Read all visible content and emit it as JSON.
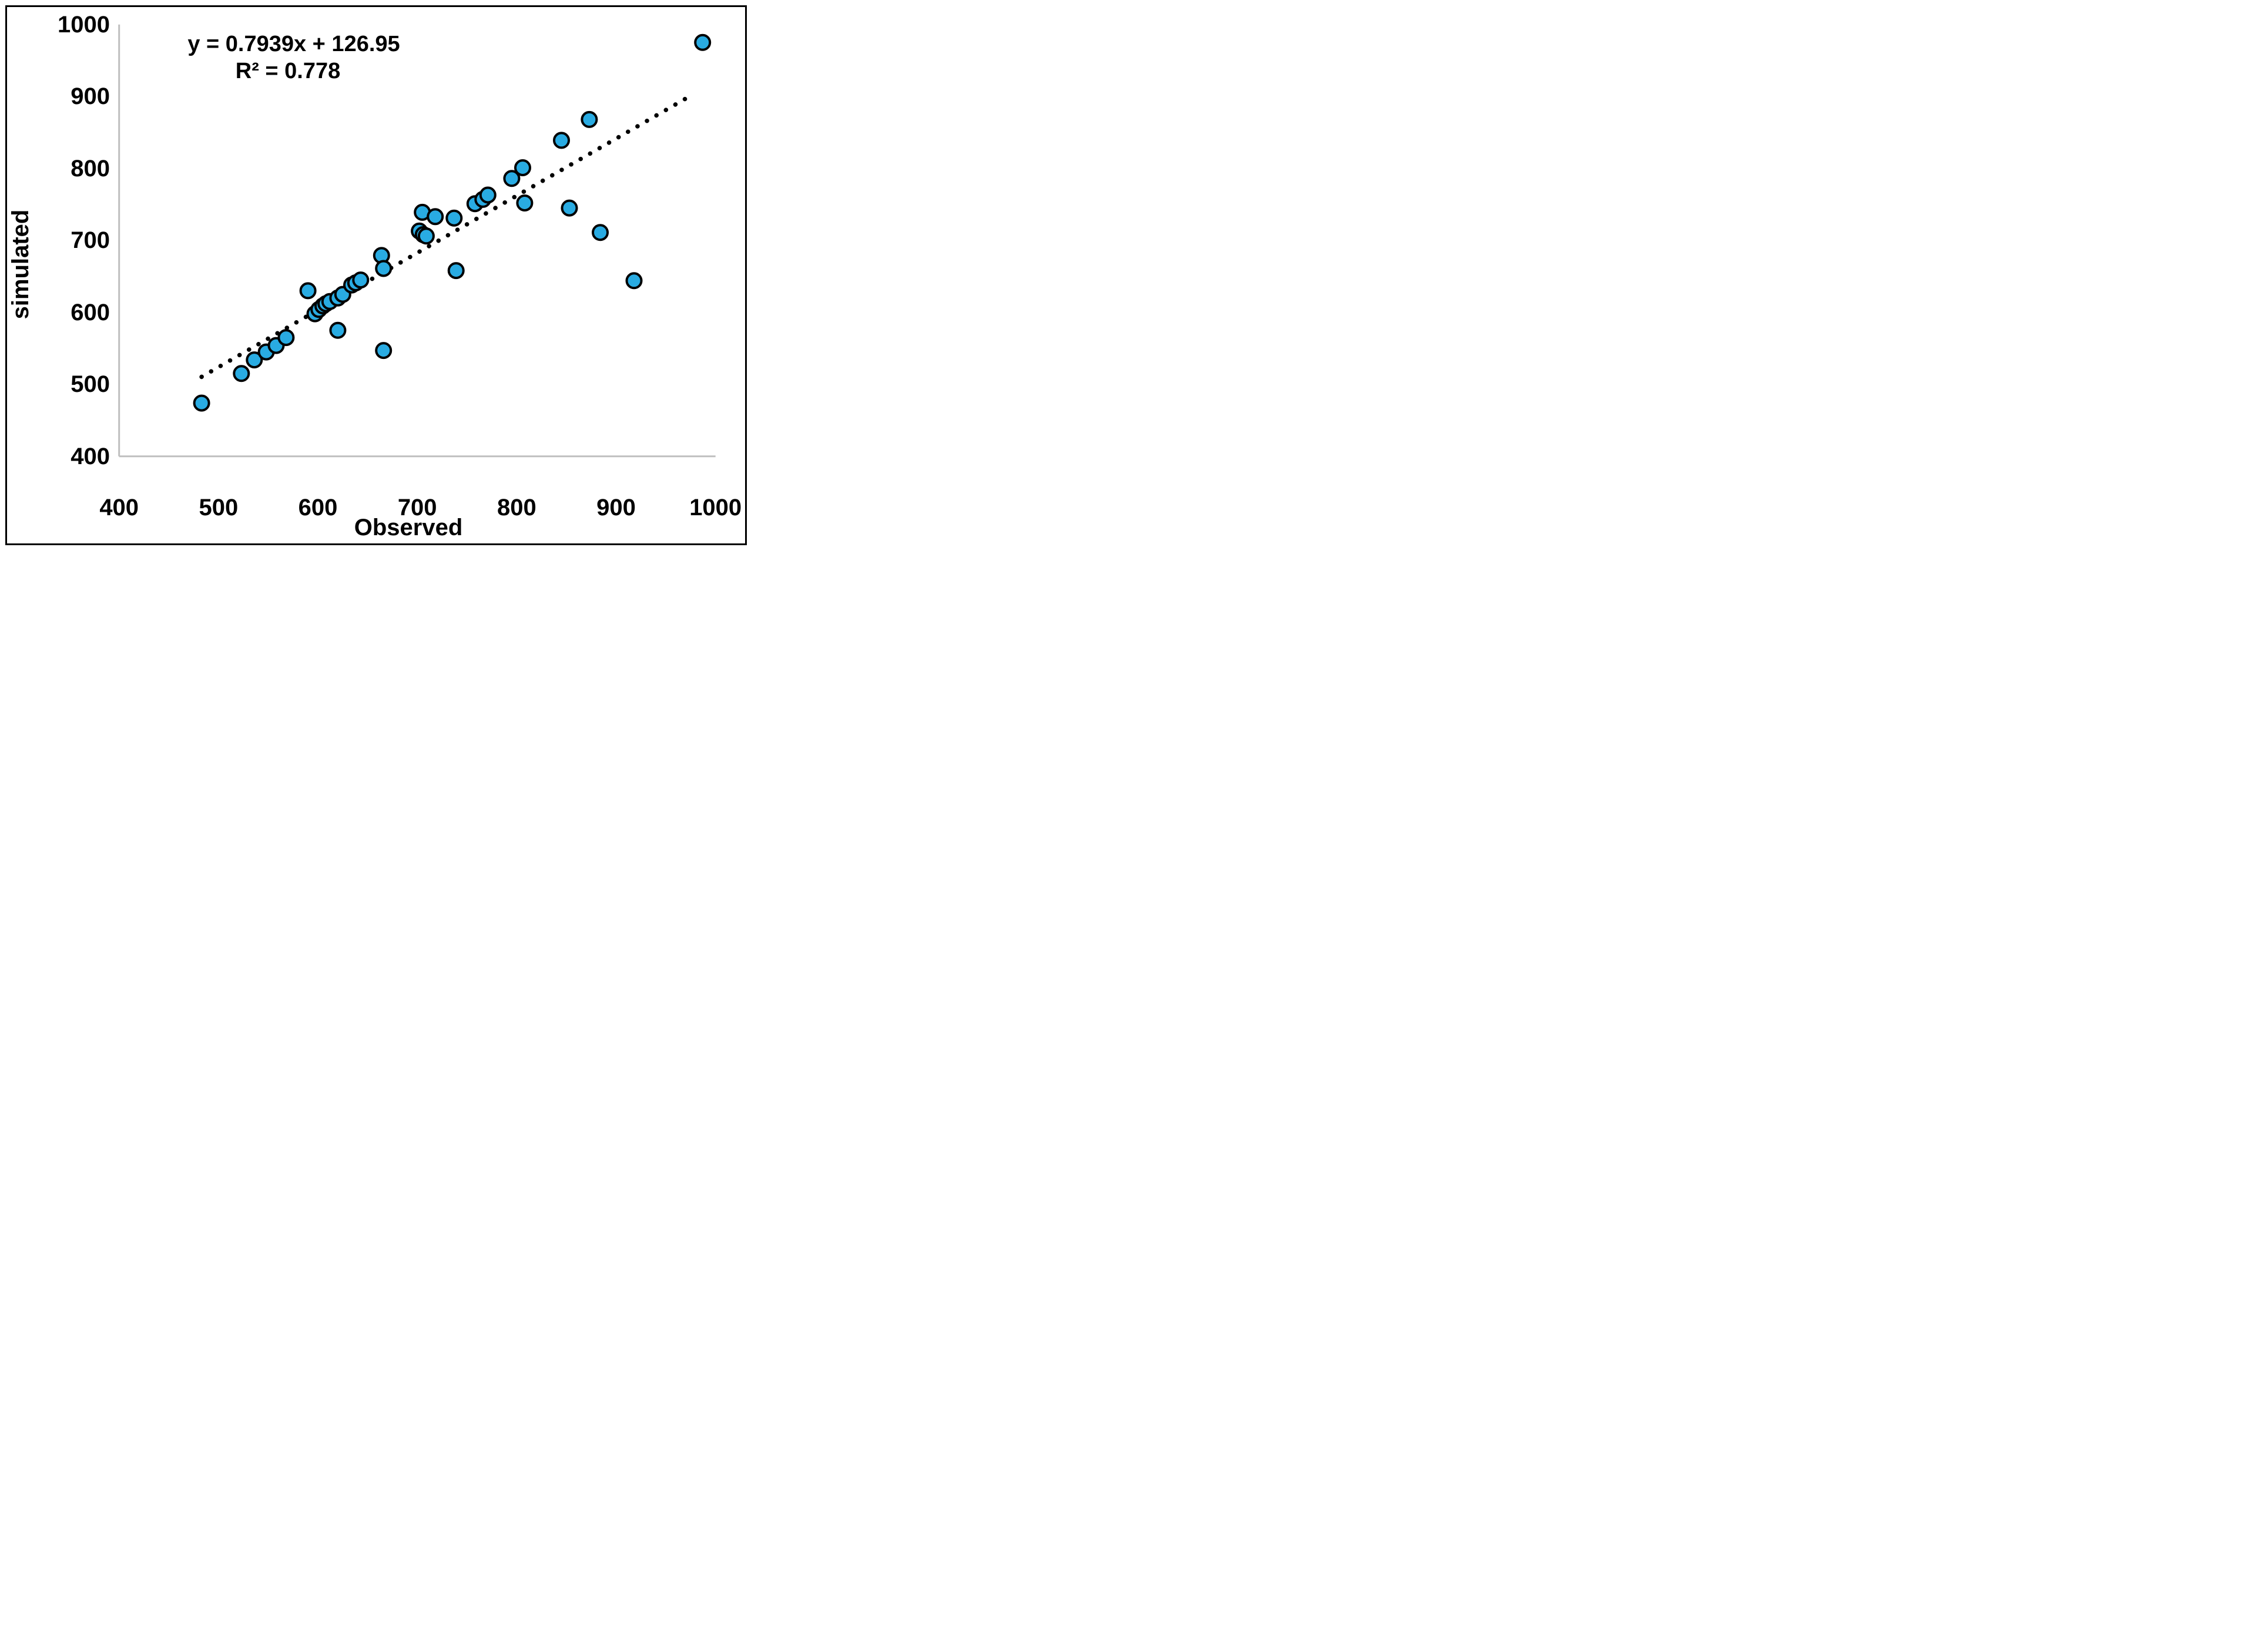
{
  "chart_data": {
    "type": "scatter",
    "title": "",
    "xlabel": "Observed",
    "ylabel": "simulated",
    "equation": "y = 0.7939x + 126.95",
    "r_squared": "R² = 0.778",
    "xlim": [
      400,
      1000
    ],
    "ylim": [
      400,
      1000
    ],
    "x_ticks": [
      "400",
      "500",
      "600",
      "700",
      "800",
      "900",
      "1000"
    ],
    "y_ticks": [
      "400",
      "500",
      "600",
      "700",
      "800",
      "900",
      "1000"
    ],
    "grid": false,
    "legend": false,
    "trendline": {
      "style": "dotted",
      "slope": 0.7939,
      "intercept": 126.95,
      "x_start": 483,
      "x_end": 977,
      "color": "#000000"
    },
    "points": [
      [
        483,
        474
      ],
      [
        523,
        515
      ],
      [
        536,
        534
      ],
      [
        548,
        545
      ],
      [
        558,
        554
      ],
      [
        568,
        565
      ],
      [
        590,
        630
      ],
      [
        597,
        598
      ],
      [
        601,
        604
      ],
      [
        605,
        609
      ],
      [
        608,
        612
      ],
      [
        612,
        615
      ],
      [
        620,
        620
      ],
      [
        625,
        625
      ],
      [
        634,
        638
      ],
      [
        638,
        641
      ],
      [
        643,
        645
      ],
      [
        664,
        679
      ],
      [
        666,
        661
      ],
      [
        620,
        575
      ],
      [
        666,
        547
      ],
      [
        739,
        658
      ],
      [
        702,
        713
      ],
      [
        706,
        708
      ],
      [
        709,
        706
      ],
      [
        705,
        739
      ],
      [
        718,
        733
      ],
      [
        737,
        731
      ],
      [
        758,
        751
      ],
      [
        766,
        757
      ],
      [
        771,
        763
      ],
      [
        795,
        786
      ],
      [
        806,
        801
      ],
      [
        808,
        752
      ],
      [
        853,
        745
      ],
      [
        845,
        839
      ],
      [
        873,
        868
      ],
      [
        884,
        711
      ],
      [
        918,
        644
      ],
      [
        987,
        975
      ]
    ],
    "marker": {
      "shape": "circle",
      "fill": "#29ABE2",
      "stroke": "#000000",
      "radius_px": 12.5,
      "stroke_width_px": 4
    },
    "colors": {
      "axis_line": "#BFBFBF",
      "frame": "#000000",
      "text": "#000000",
      "background": "#FFFFFF"
    }
  }
}
